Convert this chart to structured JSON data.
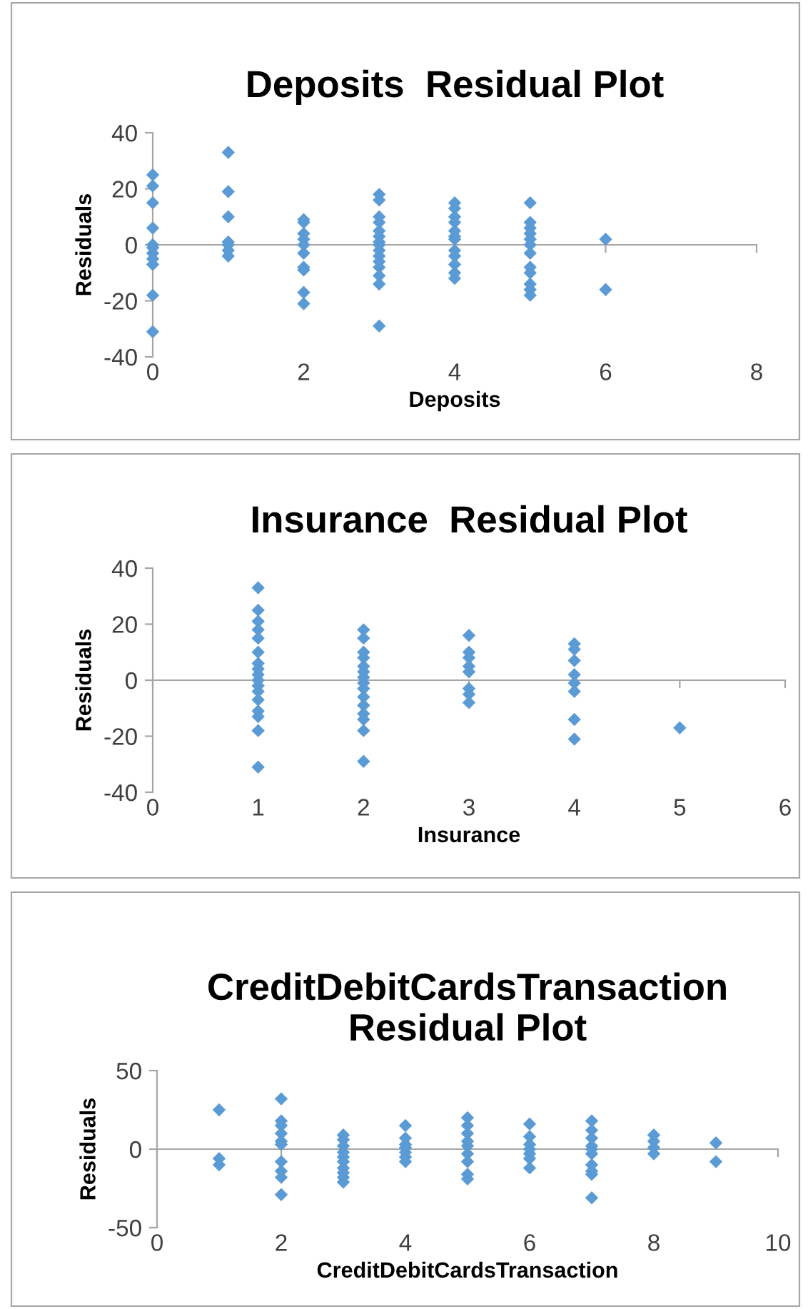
{
  "chart_data": [
    {
      "type": "scatter",
      "title": "Deposits  Residual Plot",
      "xlabel": "Deposits",
      "ylabel": "Residuals",
      "marker": "diamond",
      "xlim": [
        0,
        8
      ],
      "ylim": [
        -40,
        40
      ],
      "xticks": [
        0,
        2,
        4,
        6,
        8
      ],
      "yticks": [
        -40,
        -20,
        0,
        20,
        40
      ],
      "series": [
        {
          "color": "#5b9bd5",
          "x": [
            0,
            0,
            0,
            0,
            0,
            0,
            0,
            0,
            0,
            0,
            0,
            1,
            1,
            1,
            1,
            1,
            1,
            1,
            2,
            2,
            2,
            2,
            2,
            2,
            2,
            2,
            2,
            2,
            3,
            3,
            3,
            3,
            3,
            3,
            3,
            3,
            3,
            3,
            3,
            3,
            3,
            3,
            3,
            4,
            4,
            4,
            4,
            4,
            4,
            4,
            4,
            4,
            4,
            4,
            4,
            5,
            5,
            5,
            5,
            5,
            5,
            5,
            5,
            5,
            5,
            5,
            5,
            6,
            6
          ],
          "values": [
            25,
            21,
            15,
            6,
            0,
            -1,
            -3,
            -5,
            -7,
            -18,
            -31,
            33,
            19,
            10,
            1,
            0,
            -2,
            -4,
            9,
            8,
            4,
            2,
            0,
            -3,
            -8,
            -9,
            -17,
            -21,
            18,
            16,
            10,
            8,
            5,
            3,
            1,
            0,
            -2,
            -4,
            -6,
            -8,
            -11,
            -14,
            -29,
            15,
            13,
            10,
            8,
            5,
            3,
            2,
            -2,
            -4,
            -7,
            -10,
            -12,
            15,
            8,
            6,
            4,
            2,
            0,
            -3,
            -8,
            -10,
            -14,
            -16,
            -18,
            2,
            -16
          ]
        }
      ]
    },
    {
      "type": "scatter",
      "title": "Insurance  Residual Plot",
      "xlabel": "Insurance",
      "ylabel": "Residuals",
      "marker": "diamond",
      "xlim": [
        0,
        6
      ],
      "ylim": [
        -40,
        40
      ],
      "xticks": [
        0,
        1,
        2,
        3,
        4,
        5,
        6
      ],
      "yticks": [
        -40,
        -20,
        0,
        20,
        40
      ],
      "series": [
        {
          "color": "#5b9bd5",
          "x": [
            1,
            1,
            1,
            1,
            1,
            1,
            1,
            1,
            1,
            1,
            1,
            1,
            1,
            1,
            1,
            1,
            1,
            2,
            2,
            2,
            2,
            2,
            2,
            2,
            2,
            2,
            2,
            2,
            2,
            2,
            2,
            2,
            3,
            3,
            3,
            3,
            3,
            3,
            3,
            3,
            4,
            4,
            4,
            4,
            4,
            4,
            4,
            4,
            5
          ],
          "values": [
            33,
            25,
            21,
            18,
            15,
            10,
            6,
            4,
            2,
            0,
            -2,
            -4,
            -7,
            -11,
            -13,
            -18,
            -31,
            18,
            15,
            10,
            8,
            5,
            3,
            1,
            -1,
            -3,
            -6,
            -9,
            -12,
            -14,
            -18,
            -29,
            16,
            10,
            8,
            5,
            3,
            -3,
            -5,
            -8,
            13,
            11,
            7,
            2,
            -1,
            -4,
            -14,
            -21,
            -17
          ]
        }
      ]
    },
    {
      "type": "scatter",
      "title": "CreditDebitCardsTransaction Residual Plot",
      "xlabel": "CreditDebitCardsTransaction",
      "ylabel": "Residuals",
      "marker": "diamond",
      "xlim": [
        0,
        10
      ],
      "ylim": [
        -50,
        50
      ],
      "xticks": [
        0,
        2,
        4,
        6,
        8,
        10
      ],
      "yticks": [
        -50,
        0,
        50
      ],
      "series": [
        {
          "color": "#5b9bd5",
          "x": [
            1,
            1,
            1,
            2,
            2,
            2,
            2,
            2,
            2,
            2,
            2,
            2,
            2,
            3,
            3,
            3,
            3,
            3,
            3,
            3,
            3,
            3,
            3,
            4,
            4,
            4,
            4,
            4,
            4,
            4,
            5,
            5,
            5,
            5,
            5,
            5,
            5,
            5,
            5,
            6,
            6,
            6,
            6,
            6,
            6,
            6,
            7,
            7,
            7,
            7,
            7,
            7,
            7,
            7,
            7,
            7,
            8,
            8,
            8,
            8,
            9,
            9
          ],
          "values": [
            25,
            -6,
            -10,
            32,
            18,
            15,
            10,
            5,
            3,
            -8,
            -14,
            -18,
            -29,
            9,
            6,
            2,
            -2,
            -5,
            -8,
            -12,
            -15,
            -18,
            -21,
            15,
            7,
            3,
            1,
            -2,
            -5,
            -8,
            20,
            15,
            10,
            5,
            2,
            -3,
            -8,
            -16,
            -19,
            16,
            8,
            3,
            0,
            -3,
            -6,
            -12,
            18,
            12,
            7,
            2,
            0,
            -3,
            -10,
            -14,
            -16,
            -31,
            9,
            5,
            1,
            -3,
            4,
            -8
          ]
        }
      ]
    }
  ]
}
